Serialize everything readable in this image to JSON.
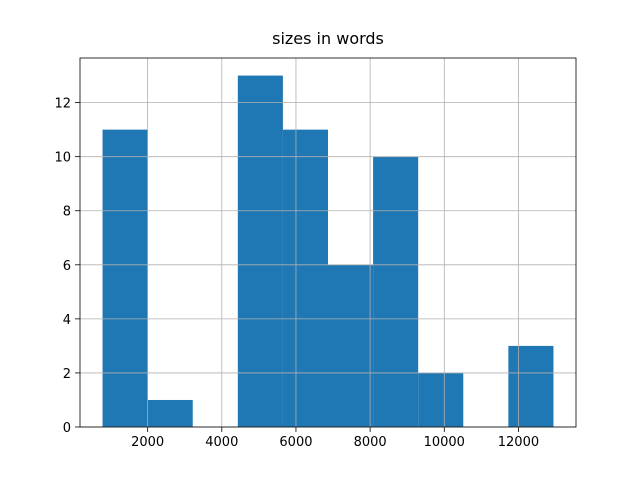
{
  "chart_data": {
    "type": "histogram",
    "title": "sizes in words",
    "bins": [
      784,
      2000,
      3216,
      4432,
      5648,
      6864,
      8080,
      9296,
      10512,
      11728,
      12944
    ],
    "values": [
      11,
      1,
      0,
      13,
      11,
      6,
      10,
      2,
      0,
      3
    ],
    "color": "#1f77b4",
    "xlim": [
      176,
      13552
    ],
    "xticks": [
      2000,
      4000,
      6000,
      8000,
      10000,
      12000
    ],
    "ylim": [
      0,
      13.65
    ],
    "yticks": [
      0,
      2,
      4,
      6,
      8,
      10,
      12
    ],
    "grid": true
  }
}
